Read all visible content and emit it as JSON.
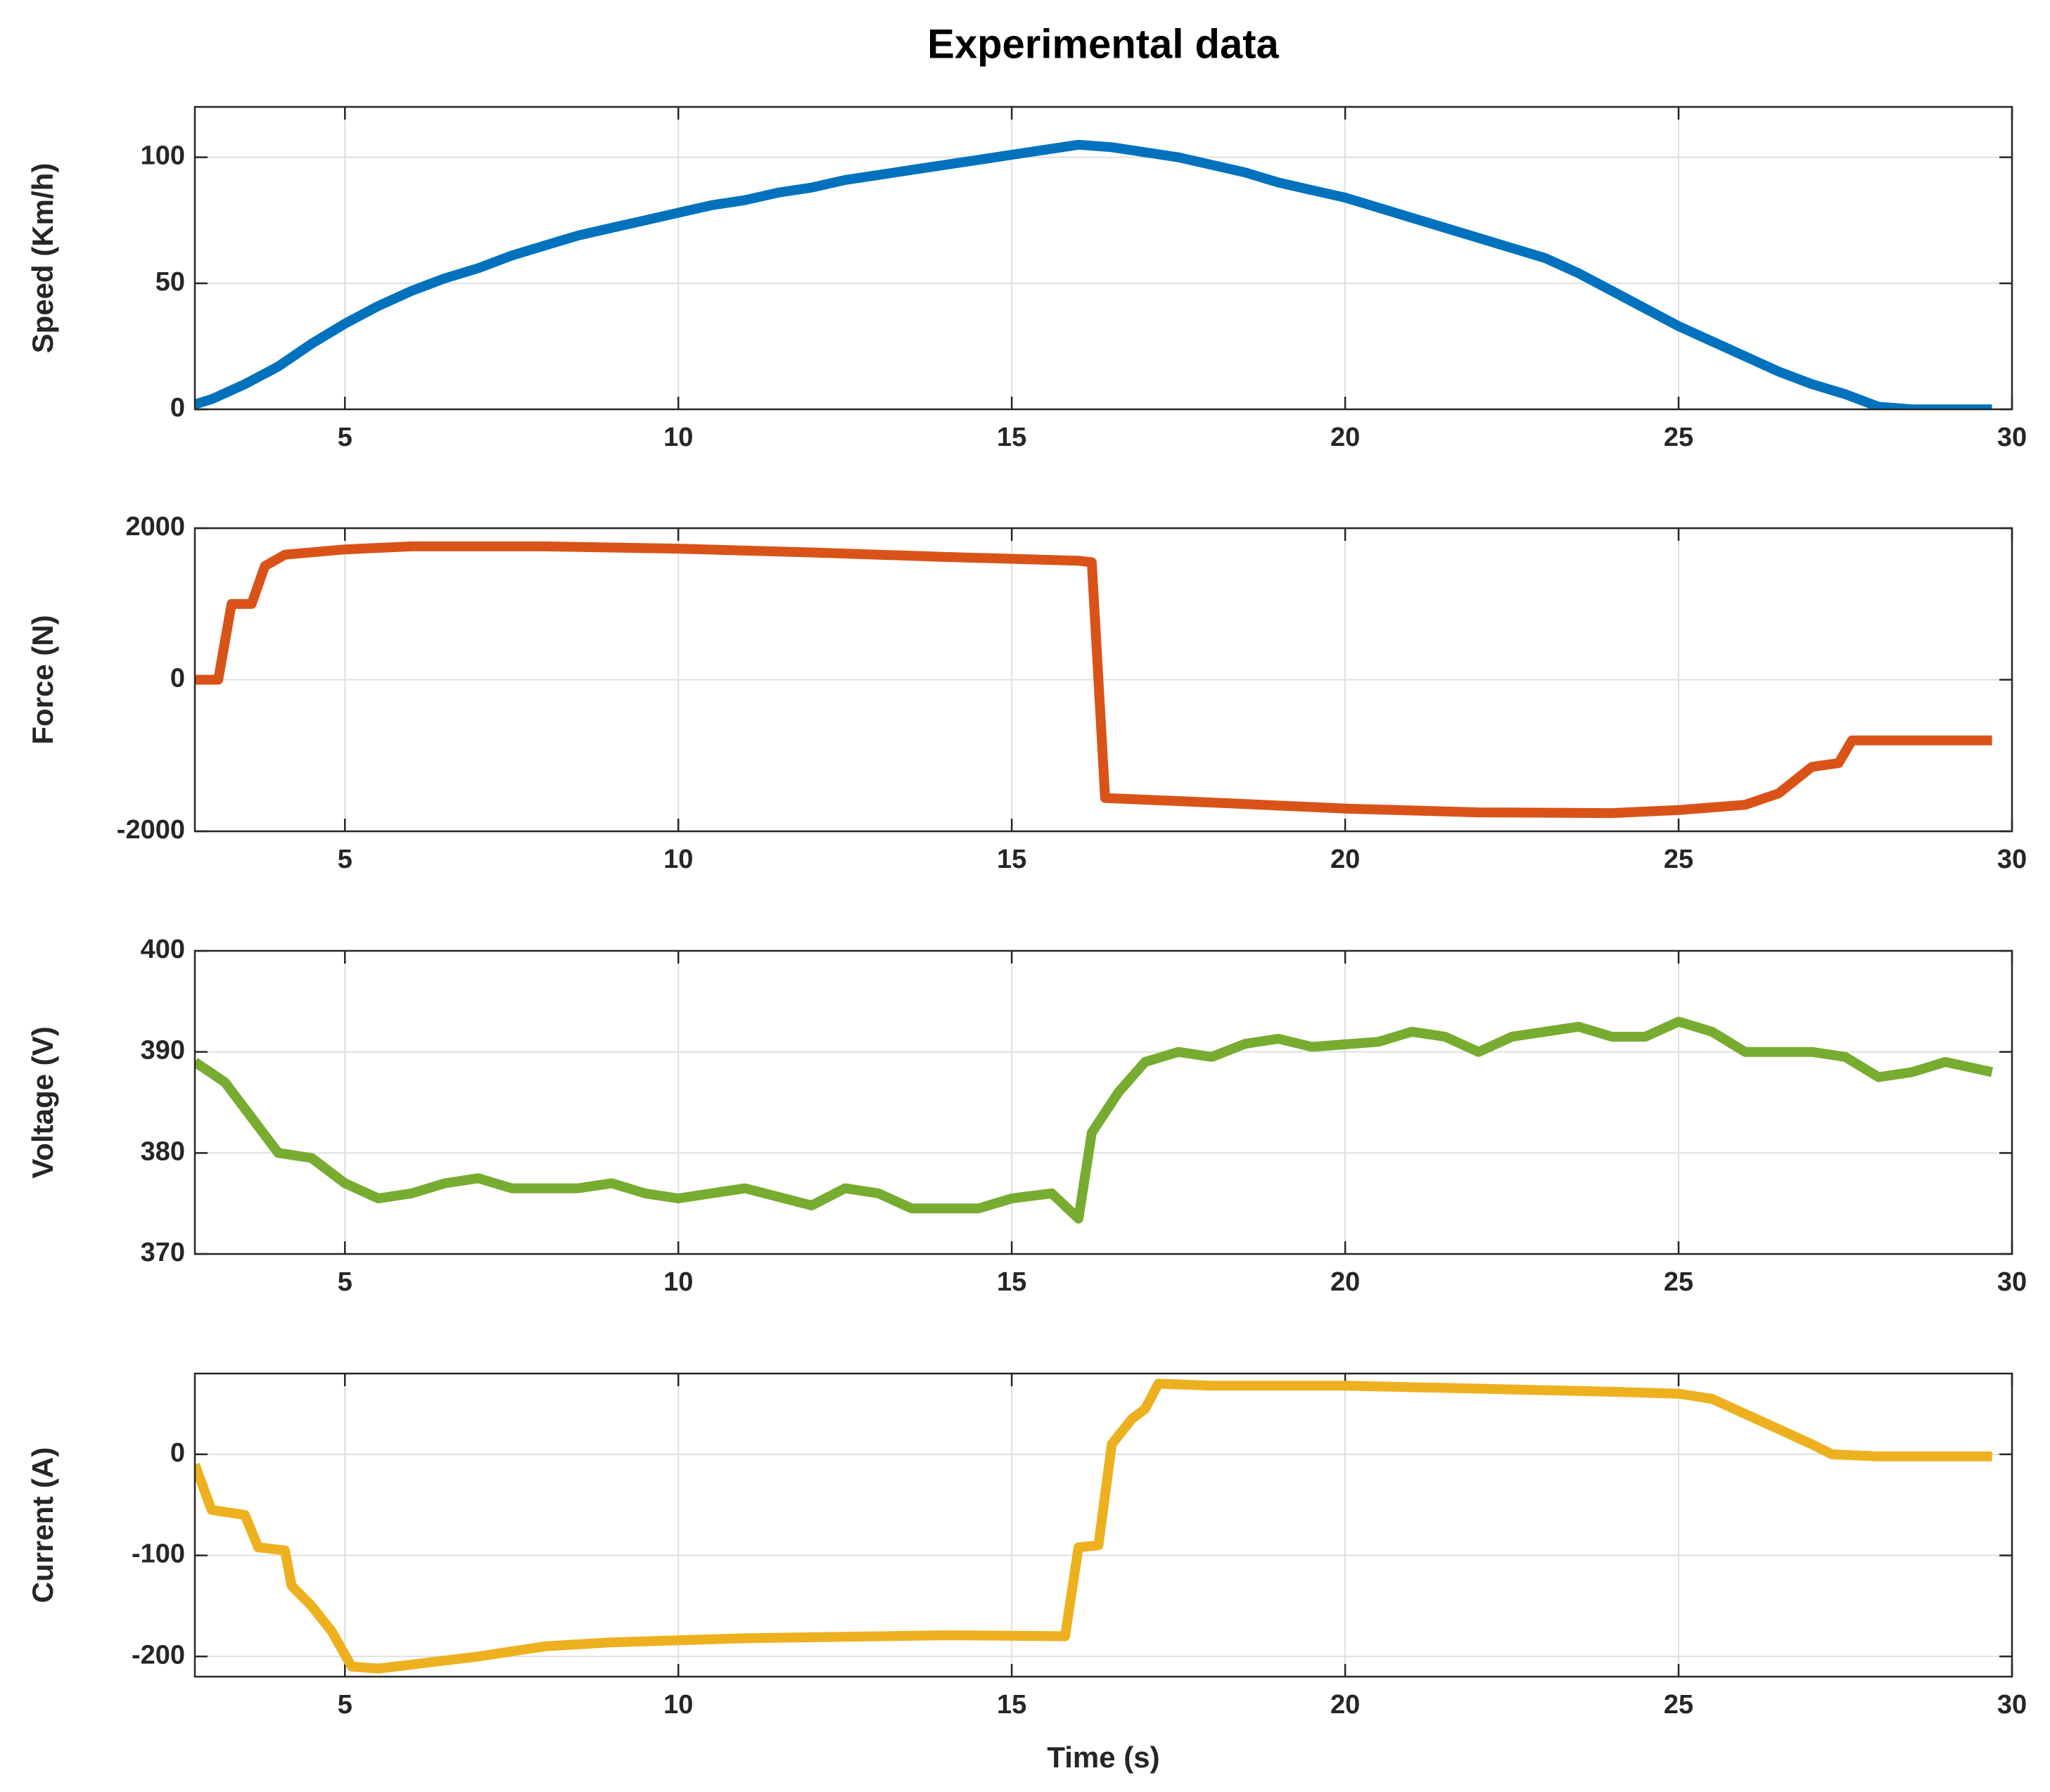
{
  "title": "Experimental data",
  "chart_data": [
    {
      "type": "line",
      "ylabel": "Speed (Km/h)",
      "color": "#0072bd",
      "x": [
        2.75,
        3,
        3.5,
        4,
        4.5,
        5,
        5.5,
        6,
        6.5,
        7,
        7.5,
        8,
        8.5,
        9,
        9.5,
        10,
        10.5,
        11,
        11.5,
        12,
        12.5,
        13,
        13.5,
        14,
        14.5,
        15,
        15.5,
        16,
        16.5,
        17,
        17.5,
        18,
        18.5,
        19,
        19.5,
        20,
        20.5,
        21,
        21.5,
        22,
        22.5,
        23,
        23.5,
        24,
        24.5,
        25,
        25.5,
        26,
        26.5,
        27,
        27.5,
        28,
        28.5,
        29,
        29.7
      ],
      "values": [
        2,
        4,
        10,
        17,
        26,
        34,
        41,
        47,
        52,
        56,
        61,
        65,
        69,
        72,
        75,
        78,
        81,
        83,
        86,
        88,
        91,
        93,
        95,
        97,
        99,
        101,
        103,
        105,
        104,
        102,
        100,
        97,
        94,
        90,
        87,
        84,
        80,
        76,
        72,
        68,
        64,
        60,
        54,
        47,
        40,
        33,
        27,
        21,
        15,
        10,
        6,
        1,
        0,
        0,
        0
      ],
      "xlim": [
        2.75,
        30
      ],
      "xticks": [
        5,
        10,
        15,
        20,
        25,
        30
      ],
      "ylim": [
        0,
        120
      ],
      "yticks": [
        0,
        50,
        100
      ],
      "grid": true
    },
    {
      "type": "line",
      "ylabel": "Force (N)",
      "color": "#d95319",
      "x": [
        2.75,
        3.1,
        3.3,
        3.6,
        3.8,
        4.1,
        5,
        6,
        8,
        10,
        12,
        14,
        16,
        16.2,
        16.4,
        18,
        20,
        22,
        24,
        25,
        26,
        26.5,
        27,
        27.4,
        27.6,
        29.7
      ],
      "values": [
        0,
        0,
        1000,
        1000,
        1500,
        1650,
        1720,
        1760,
        1760,
        1730,
        1680,
        1620,
        1570,
        1550,
        -1560,
        -1620,
        -1700,
        -1750,
        -1760,
        -1720,
        -1650,
        -1500,
        -1150,
        -1100,
        -800,
        -800
      ],
      "xlim": [
        2.75,
        30
      ],
      "xticks": [
        5,
        10,
        15,
        20,
        25,
        30
      ],
      "ylim": [
        -2000,
        2000
      ],
      "yticks": [
        -2000,
        0,
        2000
      ],
      "grid": true
    },
    {
      "type": "line",
      "ylabel": "Voltage (V)",
      "color": "#77ac30",
      "x": [
        2.75,
        3.2,
        3.6,
        4,
        4.5,
        5,
        5.5,
        6,
        6.5,
        7,
        7.5,
        8.5,
        9,
        9.5,
        10,
        11,
        12,
        12.5,
        13,
        13.5,
        14.5,
        15,
        15.6,
        16,
        16.2,
        16.6,
        17,
        17.5,
        18,
        18.5,
        19,
        19.5,
        20.5,
        21,
        21.5,
        22,
        22.5,
        23,
        23.5,
        24,
        24.5,
        25,
        25.5,
        26,
        27,
        27.5,
        28,
        28.5,
        29,
        29.7
      ],
      "values": [
        389,
        387,
        383.5,
        380,
        379.5,
        377,
        375.5,
        376,
        377,
        377.5,
        376.5,
        376.5,
        377,
        376,
        375.5,
        376.5,
        374.8,
        376.5,
        376,
        374.5,
        374.5,
        375.5,
        376,
        373.5,
        382,
        386,
        389,
        390,
        389.5,
        390.8,
        391.3,
        390.5,
        391,
        392,
        391.5,
        390,
        391.5,
        392,
        392.5,
        391.5,
        391.5,
        393,
        392,
        390,
        390,
        389.5,
        387.5,
        388,
        389,
        388
      ],
      "xlim": [
        2.75,
        30
      ],
      "xticks": [
        5,
        10,
        15,
        20,
        25,
        30
      ],
      "ylim": [
        370,
        400
      ],
      "yticks": [
        370,
        380,
        390,
        400
      ],
      "grid": true
    },
    {
      "type": "line",
      "ylabel": "Current (A)",
      "xlabel": "Time (s)",
      "color": "#edb120",
      "x": [
        2.75,
        3,
        3.5,
        3.7,
        4.1,
        4.2,
        4.5,
        4.8,
        5.1,
        5.5,
        6,
        7,
        8,
        9,
        10,
        11,
        12,
        14,
        15.8,
        16,
        16.3,
        16.5,
        16.8,
        17,
        17.2,
        18,
        20,
        22,
        24,
        25,
        25.5,
        26,
        26.5,
        27,
        27.3,
        28,
        29.7
      ],
      "values": [
        -10,
        -55,
        -60,
        -92,
        -95,
        -130,
        -150,
        -175,
        -210,
        -212,
        -208,
        -200,
        -190,
        -186,
        -184,
        -182,
        -181,
        -179,
        -180,
        -92,
        -90,
        10,
        35,
        45,
        70,
        68,
        68,
        65,
        62,
        60,
        55,
        40,
        25,
        10,
        0,
        -2,
        -2
      ],
      "xlim": [
        2.75,
        30
      ],
      "xticks": [
        5,
        10,
        15,
        20,
        25,
        30
      ],
      "ylim": [
        -220,
        80
      ],
      "yticks": [
        -200,
        -100,
        0
      ],
      "grid": true
    }
  ]
}
